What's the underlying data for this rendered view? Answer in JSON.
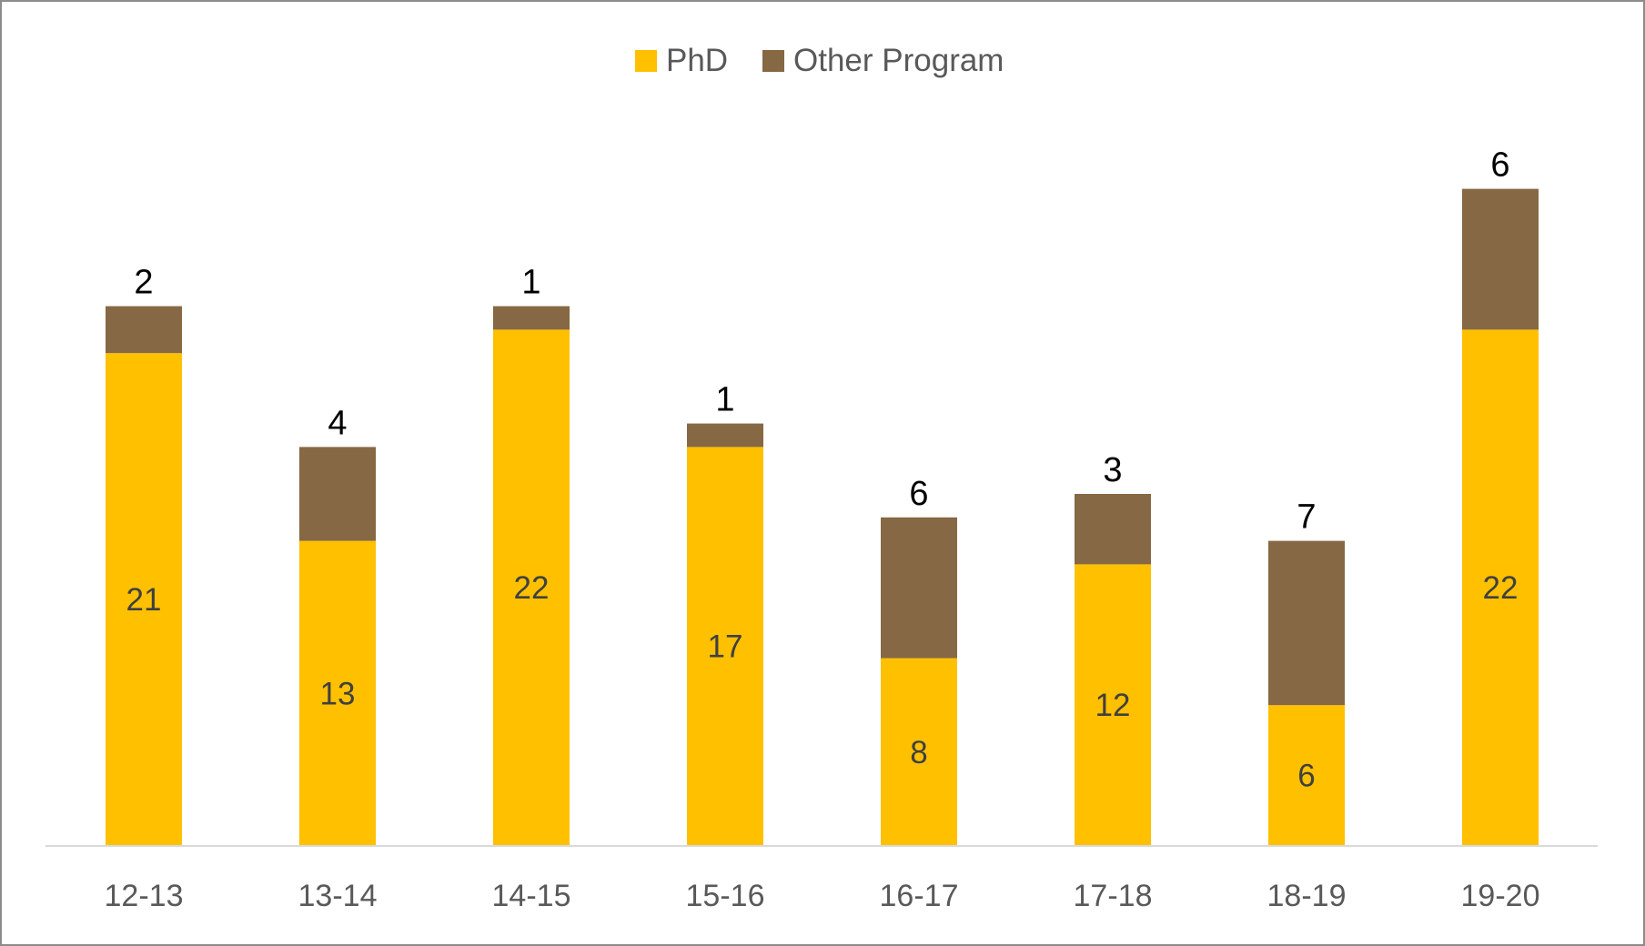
{
  "chart_data": {
    "type": "bar",
    "stacked": true,
    "title": "",
    "xlabel": "",
    "ylabel": "",
    "categories": [
      "12-13",
      "13-14",
      "14-15",
      "15-16",
      "16-17",
      "17-18",
      "18-19",
      "19-20"
    ],
    "series": [
      {
        "name": "PhD",
        "values": [
          21,
          13,
          22,
          17,
          8,
          12,
          6,
          22
        ],
        "color": "#FFC000"
      },
      {
        "name": "Other Program",
        "values": [
          2,
          4,
          1,
          1,
          6,
          3,
          7,
          6
        ],
        "color": "#866844"
      }
    ],
    "ylim": [
      0,
      28
    ],
    "grid": false,
    "legend": "top-center",
    "data_labels": true
  }
}
